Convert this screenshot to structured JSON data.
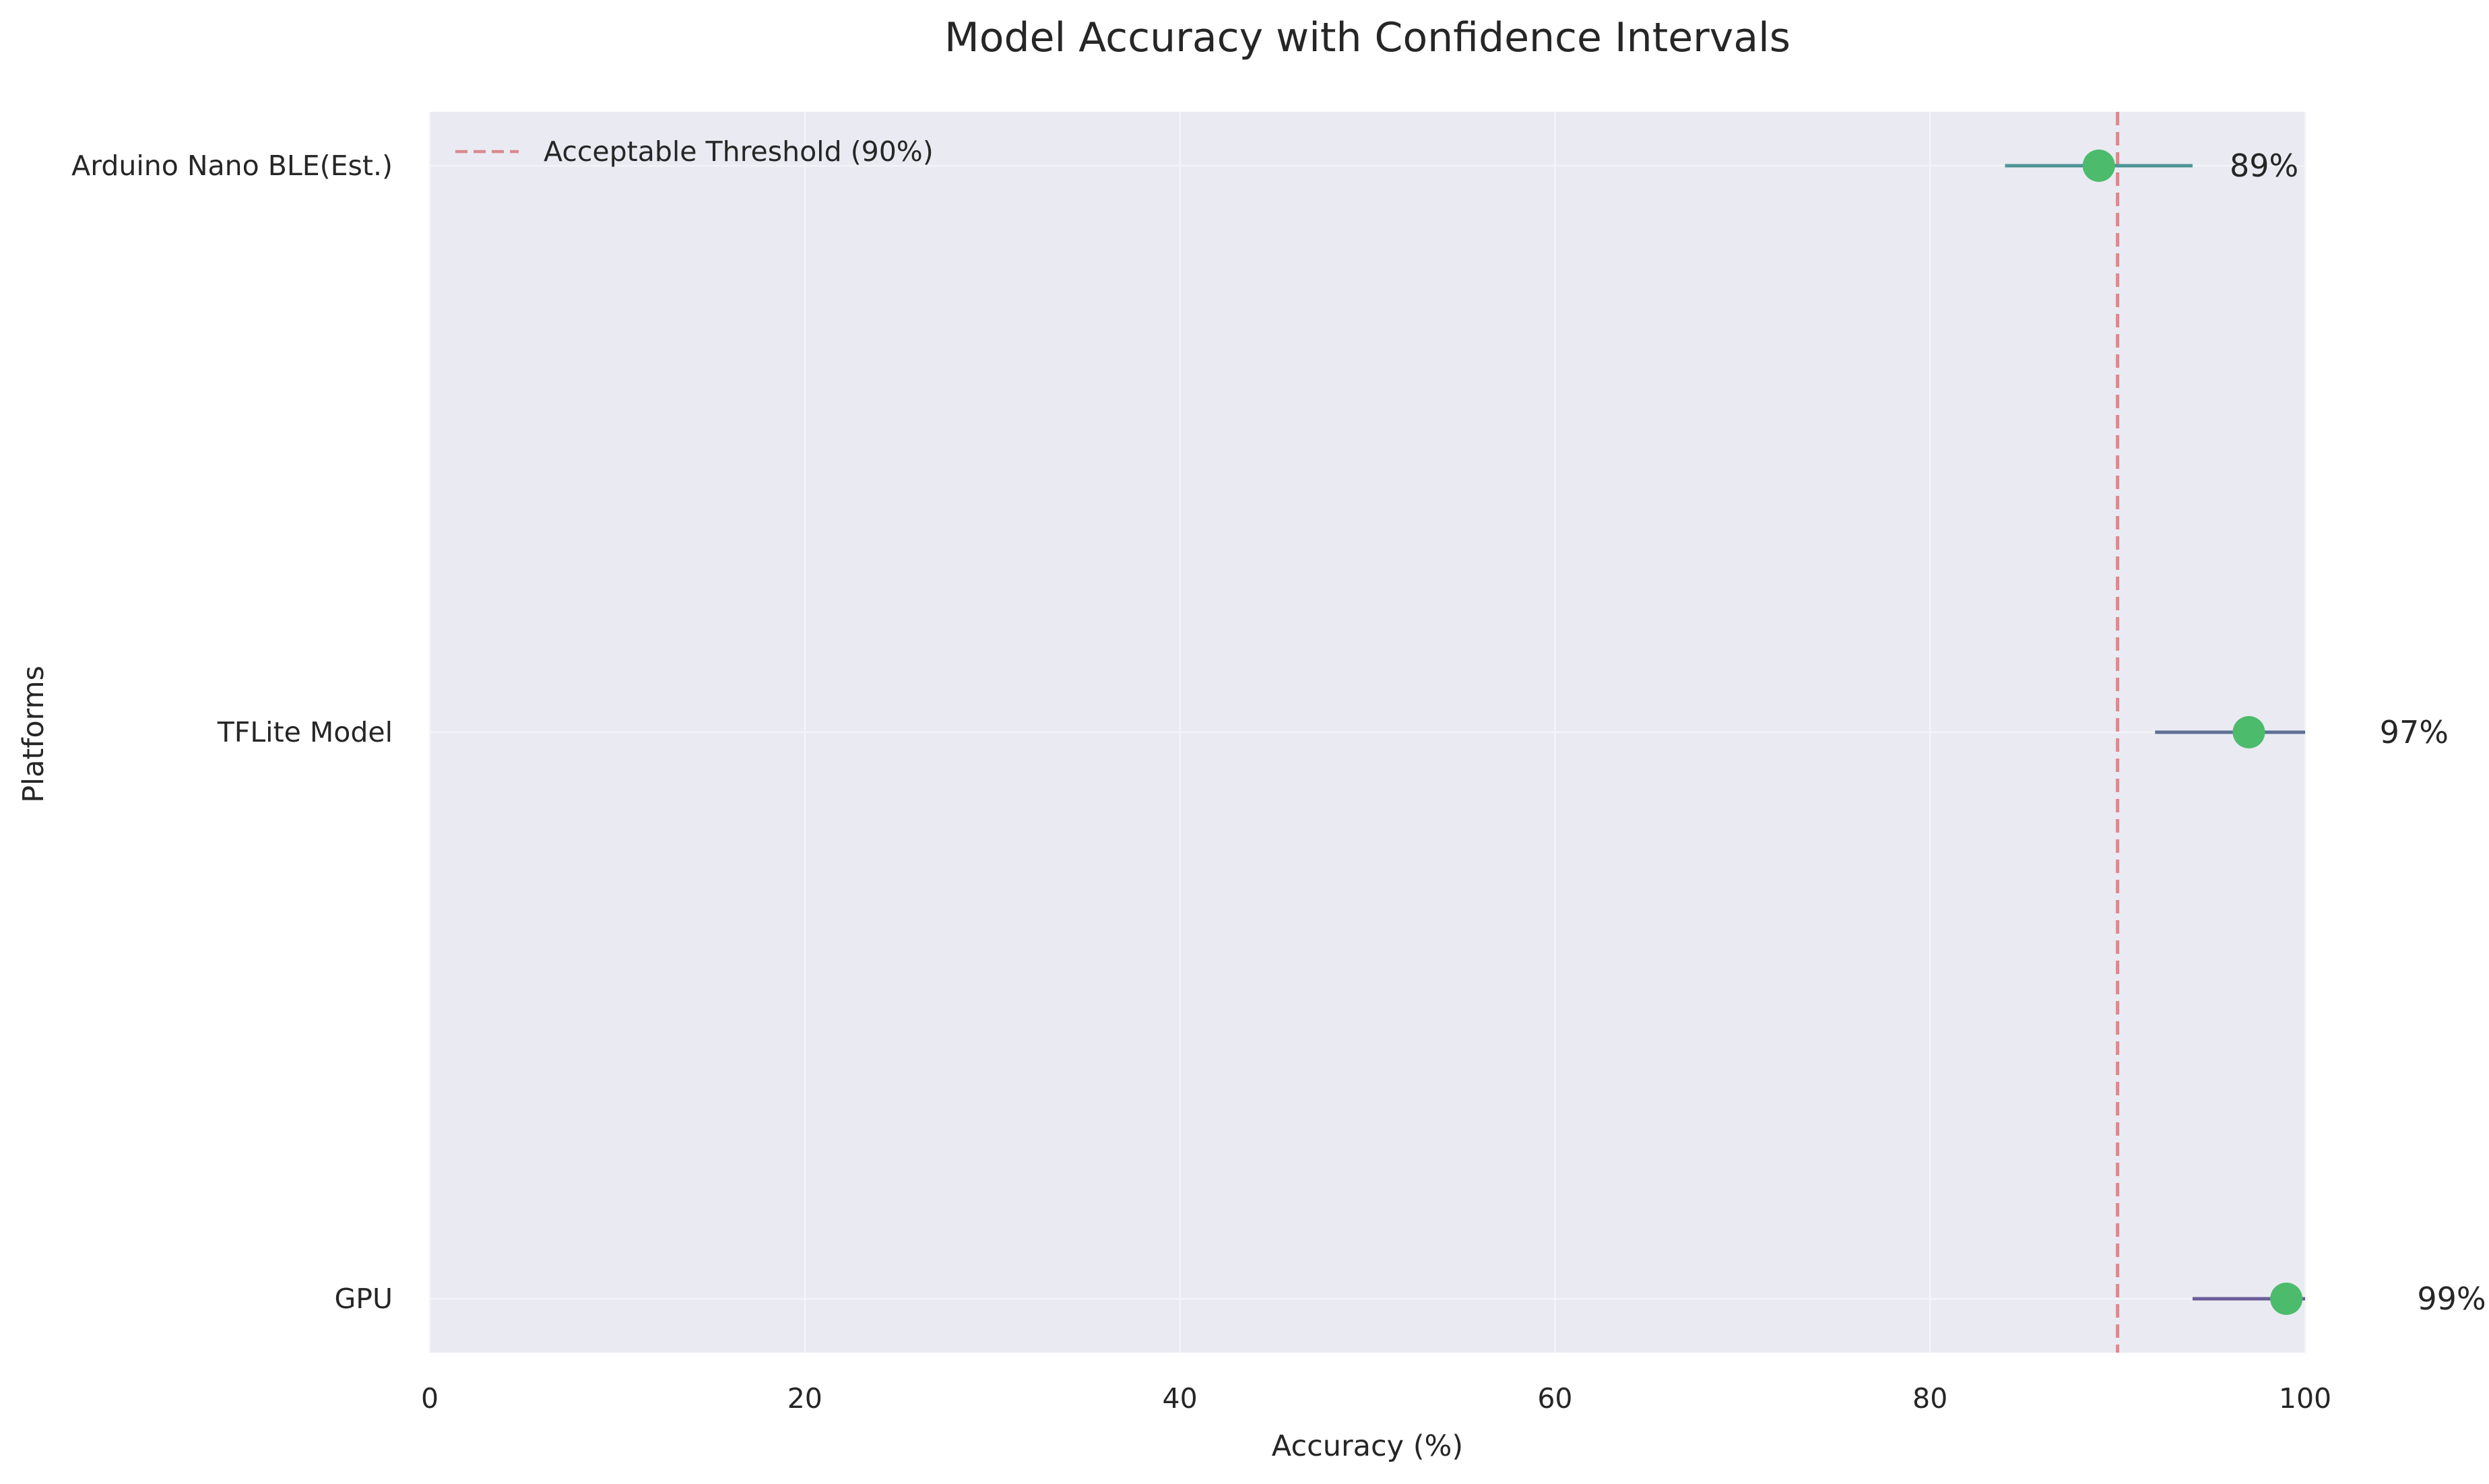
{
  "chart_data": {
    "type": "scatter",
    "title": "Model Accuracy with Confidence Intervals",
    "xlabel": "Accuracy (%)",
    "ylabel": "Platforms",
    "xlim": [
      0,
      100
    ],
    "xticks": [
      "0",
      "20",
      "40",
      "60",
      "80",
      "100"
    ],
    "grid": true,
    "legend_position": "top-left",
    "categories": [
      "GPU",
      "TFLite Model",
      "Arduino Nano BLE(Est.)"
    ],
    "series": [
      {
        "values": [
          99,
          97,
          89
        ],
        "ci_low": [
          94,
          92,
          84
        ],
        "ci_high": [
          104,
          102,
          94
        ],
        "value_labels": [
          "99%",
          "97%",
          "89%"
        ],
        "marker_color": "#4cbb6c",
        "ci_colors": [
          "#6b5b9a",
          "#5e7094",
          "#4e9497"
        ]
      }
    ],
    "threshold": {
      "value": 90,
      "label": "Acceptable Threshold (90%)",
      "color": "#d98a8f"
    },
    "colors": {
      "plot_background": "#eaeaf2",
      "grid": "#f4f4f8"
    }
  }
}
